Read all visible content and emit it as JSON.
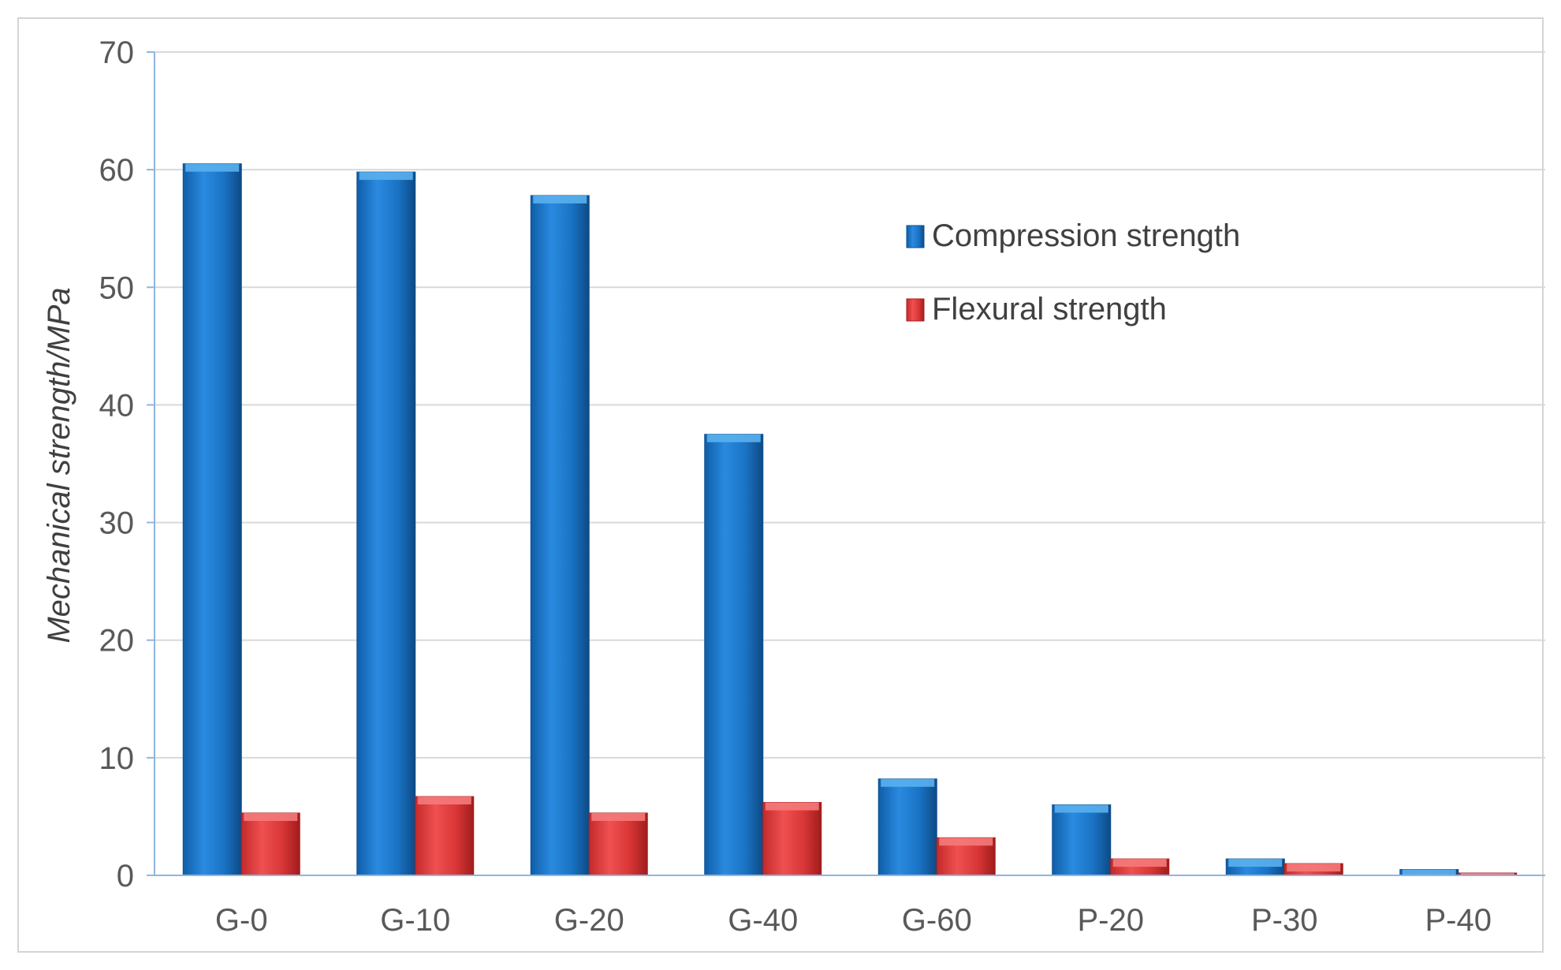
{
  "chart_data": {
    "type": "bar",
    "categories": [
      "G-0",
      "G-10",
      "G-20",
      "G-40",
      "G-60",
      "P-20",
      "P-30",
      "P-40"
    ],
    "series": [
      {
        "name": "Compression strength",
        "values": [
          60.5,
          59.8,
          57.8,
          37.5,
          8.2,
          6.0,
          1.4,
          0.5
        ]
      },
      {
        "name": "Flexural strength",
        "values": [
          5.3,
          6.7,
          5.3,
          6.2,
          3.2,
          1.4,
          1.0,
          0.2
        ]
      }
    ],
    "xlabel": "",
    "ylabel": "Mechanical strength/MPa",
    "ylim": [
      0,
      70
    ],
    "yticks": [
      0,
      10,
      20,
      30,
      40,
      50,
      60,
      70
    ],
    "grid": true,
    "legend_position": "top-right",
    "colors": {
      "compression": "#1f77c9",
      "compression_dark": "#0f4f8f",
      "compression_top": "#5ab0ee",
      "flexural": "#e03a3a",
      "flexural_dark": "#a81e1e",
      "flexural_top": "#f57a7a",
      "gridline": "#d9d9d9",
      "axis": "#8fb6dd"
    }
  }
}
